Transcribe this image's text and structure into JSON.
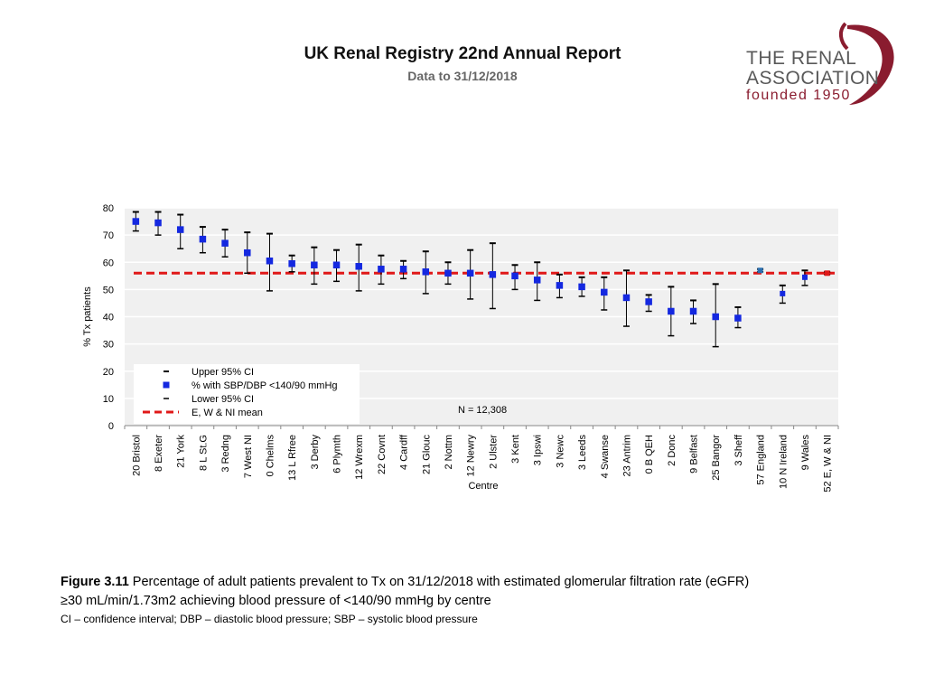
{
  "header": {
    "title": "UK Renal Registry 22nd Annual Report",
    "subtitle": "Data to 31/12/2018"
  },
  "logo": {
    "line1": "THE RENAL",
    "line2": "ASSOCIATION",
    "line3": "founded 1950"
  },
  "colors": {
    "marker": "#1428e0",
    "mean_line": "#e01818",
    "plot_bg": "#f0f0f0",
    "grid": "#ffffff",
    "logo_red": "#8a1c2f"
  },
  "chart_data": {
    "type": "scatter",
    "ylabel": "% Tx patients",
    "xlabel": "Centre",
    "ylim": [
      0,
      80
    ],
    "yticks": [
      0,
      10,
      20,
      30,
      40,
      50,
      60,
      70,
      80
    ],
    "mean": 56,
    "n_label": "N = 12,308",
    "legend": [
      {
        "key": "upper",
        "label": "Upper 95% CI"
      },
      {
        "key": "point",
        "label": "% with SBP/DBP <140/90 mmHg"
      },
      {
        "key": "lower",
        "label": "Lower 95% CI"
      },
      {
        "key": "mean",
        "label": "E, W & NI mean"
      }
    ],
    "categories": [
      "20 Bristol",
      "8 Exeter",
      "21 York",
      "8 L St.G",
      "3 Redng",
      "7 West NI",
      "0 Chelms",
      "13 L Rfree",
      "3 Derby",
      "6 Plymth",
      "12 Wrexm",
      "22 Covnt",
      "4 Cardff",
      "21 Glouc",
      "2 Nottm",
      "12 Newry",
      "2 Ulster",
      "3 Kent",
      "3 Ipswi",
      "3 Newc",
      "3 Leeds",
      "4 Swanse",
      "23 Antrim",
      "0 B QEH",
      "2 Donc",
      "9 Belfast",
      "25 Bangor",
      "3 Sheff",
      "57 England",
      "10 N Ireland",
      "9 Wales",
      "52 E, W & NI"
    ],
    "values": [
      75,
      74.5,
      72,
      68.5,
      67,
      63.5,
      60.5,
      59.5,
      59,
      59,
      58.5,
      57.5,
      57.5,
      56.5,
      56,
      56,
      55.5,
      55,
      53.5,
      51.5,
      51,
      49,
      47,
      45.5,
      42,
      42,
      40,
      39.5,
      57,
      48.5,
      54.5,
      56
    ],
    "upper": [
      78.5,
      78.5,
      77.5,
      73,
      72,
      71,
      70.5,
      62.5,
      65.5,
      64.5,
      66.5,
      62.5,
      60.5,
      64,
      60,
      64.5,
      67,
      59,
      60,
      55.5,
      54.5,
      54.5,
      57,
      48,
      51,
      46,
      52,
      43.5,
      57.5,
      51.5,
      57,
      56.5
    ],
    "lower": [
      71.5,
      70,
      65,
      63.5,
      62,
      56,
      49.5,
      56.5,
      52,
      53,
      49.5,
      52,
      54,
      48.5,
      52,
      46.5,
      43,
      50,
      46,
      47,
      47.5,
      42.5,
      36.5,
      42,
      33,
      37.5,
      29,
      36,
      56.5,
      45,
      51.5,
      55.5
    ],
    "grid": true
  },
  "caption": {
    "figure_label": "Figure 3.11",
    "text": "Percentage of adult patients prevalent to Tx on 31/12/2018 with estimated glomerular filtration rate (eGFR)",
    "text2": "≥30 mL/min/1.73m2 achieving blood pressure of <140/90 mmHg by centre",
    "note": "CI – confidence interval; DBP – diastolic blood pressure; SBP – systolic blood pressure"
  }
}
